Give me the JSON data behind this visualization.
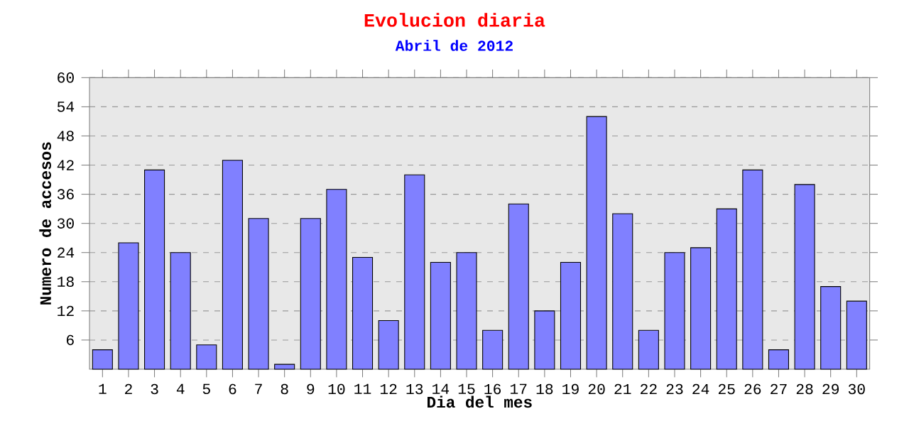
{
  "chart_data": {
    "type": "bar",
    "title": "Evolucion diaria",
    "subtitle": "Abril de 2012",
    "xlabel": "Dia del mes",
    "ylabel": "Numero de accesos",
    "categories": [
      "1",
      "2",
      "3",
      "4",
      "5",
      "6",
      "7",
      "8",
      "9",
      "10",
      "11",
      "12",
      "13",
      "14",
      "15",
      "16",
      "17",
      "18",
      "19",
      "20",
      "21",
      "22",
      "23",
      "24",
      "25",
      "26",
      "27",
      "28",
      "29",
      "30"
    ],
    "values": [
      4,
      26,
      41,
      24,
      5,
      43,
      31,
      1,
      31,
      37,
      23,
      10,
      40,
      22,
      24,
      8,
      34,
      12,
      22,
      52,
      32,
      8,
      24,
      25,
      33,
      41,
      4,
      38,
      17,
      14
    ],
    "color": "#8080ff",
    "ylim": [
      0,
      60
    ],
    "yticks": [
      6,
      12,
      18,
      24,
      30,
      36,
      42,
      48,
      54,
      60
    ],
    "grid": "y"
  }
}
